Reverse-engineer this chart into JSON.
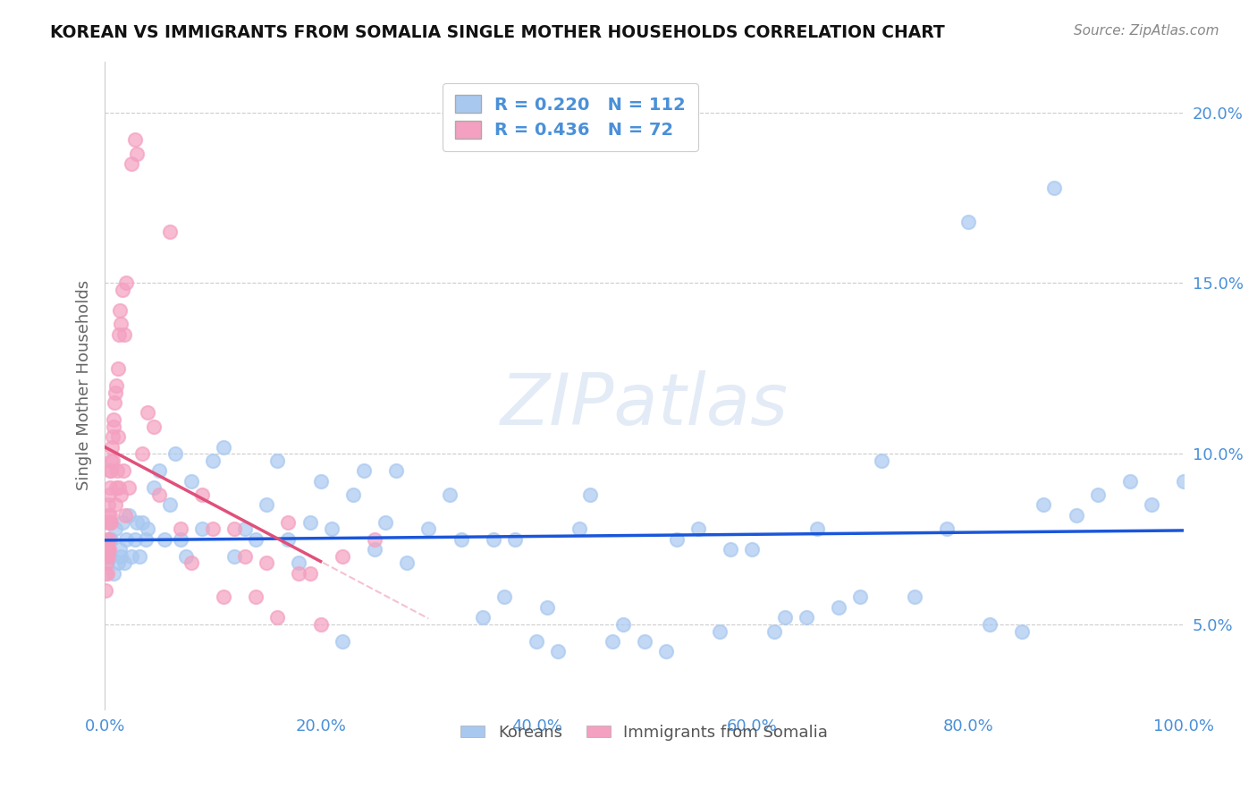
{
  "title": "KOREAN VS IMMIGRANTS FROM SOMALIA SINGLE MOTHER HOUSEHOLDS CORRELATION CHART",
  "source": "Source: ZipAtlas.com",
  "ylabel": "Single Mother Households",
  "korean_color": "#a8c8f0",
  "somalia_color": "#f4a0c0",
  "korean_line_color": "#1a56db",
  "somalia_line_color": "#e0507a",
  "watermark": "ZIPatlas",
  "korean_data_x": [
    0.1,
    0.2,
    0.3,
    0.5,
    0.6,
    0.8,
    1.0,
    1.2,
    1.4,
    1.5,
    1.6,
    1.8,
    2.0,
    2.2,
    2.5,
    2.8,
    3.0,
    3.2,
    3.5,
    3.8,
    4.0,
    4.5,
    5.0,
    5.5,
    6.0,
    6.5,
    7.0,
    7.5,
    8.0,
    9.0,
    10.0,
    11.0,
    12.0,
    13.0,
    14.0,
    15.0,
    16.0,
    17.0,
    18.0,
    19.0,
    20.0,
    21.0,
    22.0,
    23.0,
    24.0,
    25.0,
    26.0,
    27.0,
    28.0,
    30.0,
    32.0,
    33.0,
    35.0,
    36.0,
    37.0,
    38.0,
    40.0,
    41.0,
    42.0,
    44.0,
    45.0,
    47.0,
    48.0,
    50.0,
    52.0,
    53.0,
    55.0,
    57.0,
    58.0,
    60.0,
    62.0,
    63.0,
    65.0,
    66.0,
    68.0,
    70.0,
    72.0,
    75.0,
    78.0,
    80.0,
    82.0,
    85.0,
    87.0,
    88.0,
    90.0,
    92.0,
    95.0,
    97.0,
    100.0
  ],
  "korean_data_y": [
    7.2,
    6.8,
    7.5,
    7.0,
    7.5,
    6.5,
    7.8,
    6.8,
    7.2,
    7.0,
    8.0,
    6.8,
    7.5,
    8.2,
    7.0,
    7.5,
    8.0,
    7.0,
    8.0,
    7.5,
    7.8,
    9.0,
    9.5,
    7.5,
    8.5,
    10.0,
    7.5,
    7.0,
    9.2,
    7.8,
    9.8,
    10.2,
    7.0,
    7.8,
    7.5,
    8.5,
    9.8,
    7.5,
    6.8,
    8.0,
    9.2,
    7.8,
    4.5,
    8.8,
    9.5,
    7.2,
    8.0,
    9.5,
    6.8,
    7.8,
    8.8,
    7.5,
    5.2,
    7.5,
    5.8,
    7.5,
    4.5,
    5.5,
    4.2,
    7.8,
    8.8,
    4.5,
    5.0,
    4.5,
    4.2,
    7.5,
    7.8,
    4.8,
    7.2,
    7.2,
    4.8,
    5.2,
    5.2,
    7.8,
    5.5,
    5.8,
    9.8,
    5.8,
    7.8,
    16.8,
    5.0,
    4.8,
    8.5,
    17.8,
    8.2,
    8.8,
    9.2,
    8.5,
    9.2
  ],
  "somalia_data_x": [
    0.05,
    0.1,
    0.12,
    0.15,
    0.18,
    0.2,
    0.22,
    0.25,
    0.28,
    0.3,
    0.32,
    0.35,
    0.38,
    0.4,
    0.42,
    0.45,
    0.48,
    0.5,
    0.52,
    0.55,
    0.58,
    0.6,
    0.65,
    0.7,
    0.75,
    0.8,
    0.85,
    0.9,
    0.95,
    1.0,
    1.05,
    1.1,
    1.15,
    1.2,
    1.25,
    1.3,
    1.35,
    1.4,
    1.45,
    1.5,
    1.6,
    1.7,
    1.8,
    1.9,
    2.0,
    2.2,
    2.5,
    2.8,
    3.0,
    3.5,
    4.0,
    4.5,
    5.0,
    6.0,
    7.0,
    8.0,
    9.0,
    10.0,
    11.0,
    12.0,
    13.0,
    14.0,
    15.0,
    16.0,
    17.0,
    18.0,
    19.0,
    20.0,
    22.0,
    25.0
  ],
  "somalia_data_y": [
    6.0,
    6.5,
    6.8,
    7.0,
    7.2,
    6.5,
    7.5,
    8.0,
    7.0,
    8.5,
    7.2,
    8.2,
    7.5,
    8.8,
    7.2,
    9.0,
    8.0,
    9.5,
    8.2,
    9.8,
    8.0,
    9.5,
    10.2,
    9.8,
    10.5,
    11.0,
    10.8,
    11.5,
    8.5,
    11.8,
    9.0,
    12.0,
    9.5,
    10.5,
    12.5,
    13.5,
    9.0,
    14.2,
    8.8,
    13.8,
    14.8,
    9.5,
    13.5,
    8.2,
    15.0,
    9.0,
    18.5,
    19.2,
    18.8,
    10.0,
    11.2,
    10.8,
    8.8,
    16.5,
    7.8,
    6.8,
    8.8,
    7.8,
    5.8,
    7.8,
    7.0,
    5.8,
    6.8,
    5.2,
    8.0,
    6.5,
    6.5,
    5.0,
    7.0,
    7.5
  ],
  "xlim": [
    0,
    100
  ],
  "ylim": [
    2.5,
    21.5
  ],
  "figsize": [
    14.06,
    8.92
  ],
  "dpi": 100,
  "xtick_vals": [
    0,
    20,
    40,
    60,
    80,
    100
  ],
  "xtick_labels": [
    "0.0%",
    "20.0%",
    "40.0%",
    "60.0%",
    "80.0%",
    "100.0%"
  ],
  "ytick_vals": [
    5,
    10,
    15,
    20
  ],
  "ytick_labels": [
    "5.0%",
    "10.0%",
    "15.0%",
    "20.0%"
  ]
}
